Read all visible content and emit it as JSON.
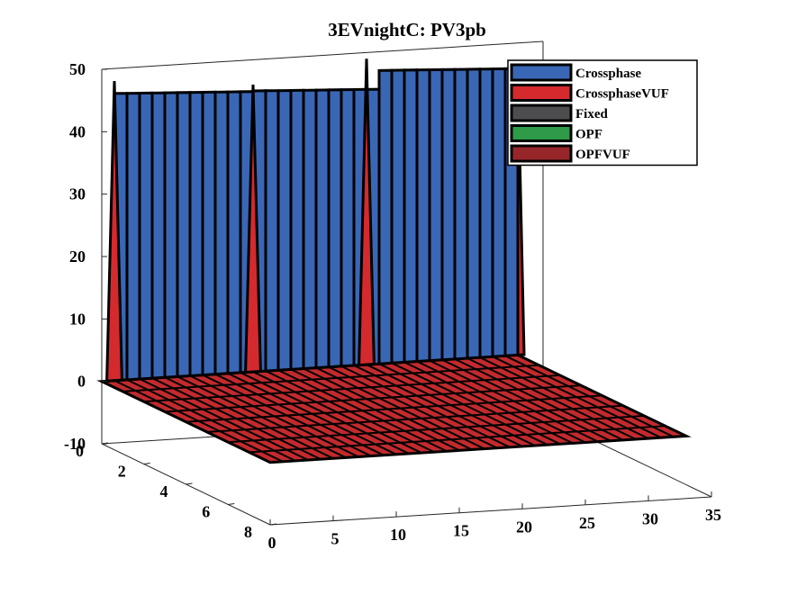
{
  "chart_data": {
    "type": "surface-3d",
    "title": "3EVnightC: PV3pb",
    "xlabel": "",
    "ylabel": "",
    "zlabel": "",
    "x_ticks": [
      "0",
      "5",
      "10",
      "15",
      "20",
      "25",
      "30",
      "35"
    ],
    "y_ticks": [
      "0",
      "2",
      "4",
      "6",
      "8"
    ],
    "z_ticks": [
      "-10",
      "0",
      "10",
      "20",
      "30",
      "40",
      "50"
    ],
    "xlim": [
      0,
      35
    ],
    "ylim": [
      0,
      8
    ],
    "zlim": [
      -10,
      50
    ],
    "legend_position": "top-right",
    "series": [
      {
        "name": "Crossphase",
        "color": "#3a67b5"
      },
      {
        "name": "CrossphaseVUF",
        "color": "#d42a2e"
      },
      {
        "name": "Fixed",
        "color": "#4d4d4f"
      },
      {
        "name": "OPF",
        "color": "#2f9a48"
      },
      {
        "name": "OPFVUF",
        "color": "#97262a"
      }
    ],
    "ridges": [
      {
        "x_start": 1,
        "x_end": 12,
        "red_peak_x": 1,
        "peak_value": 48,
        "plateau_value": 46,
        "series": "Crossphase"
      },
      {
        "x_start": 12,
        "x_end": 22,
        "red_peak_x": 12,
        "peak_value": 46,
        "plateau_value": 45,
        "series": "Crossphase"
      },
      {
        "x_start": 22,
        "x_end": 33,
        "red_peak_x": 21,
        "peak_value": 49,
        "plateau_value": 47,
        "series": "Crossphase"
      }
    ],
    "floor_value": 0
  }
}
